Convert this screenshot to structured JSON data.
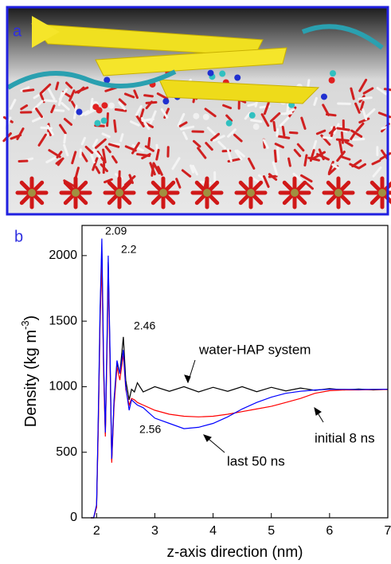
{
  "panel_a": {
    "label": "a"
  },
  "chart_data": {
    "type": "line",
    "panel_label": "b",
    "xlabel": "z-axis direction (nm)",
    "ylabel": {
      "text": "Density (kg m",
      "superscript": "-3",
      "end": ")"
    },
    "xlim": [
      1.75,
      7
    ],
    "ylim": [
      0,
      2230
    ],
    "xticks": [
      2,
      3,
      4,
      5,
      6,
      7
    ],
    "yticks": [
      0,
      500,
      1000,
      1500,
      2000
    ],
    "x": [
      1.9,
      1.95,
      2.0,
      2.03,
      2.06,
      2.09,
      2.12,
      2.15,
      2.18,
      2.2,
      2.23,
      2.26,
      2.3,
      2.35,
      2.4,
      2.46,
      2.5,
      2.56,
      2.6,
      2.65,
      2.7,
      2.8,
      3.0,
      3.25,
      3.5,
      3.75,
      4.0,
      4.25,
      4.5,
      4.75,
      5.0,
      5.25,
      5.5,
      5.75,
      6.0,
      6.25,
      6.5,
      6.75,
      7.0
    ],
    "series": [
      {
        "name": "water-HAP system",
        "color": "#000000",
        "values": [
          0,
          0,
          90,
          750,
          1550,
          2050,
          1150,
          640,
          1350,
          1950,
          1250,
          440,
          880,
          1180,
          1100,
          1380,
          1050,
          900,
          980,
          960,
          1030,
          960,
          1000,
          965,
          1000,
          960,
          995,
          965,
          1000,
          962,
          995,
          968,
          990,
          972,
          985,
          975,
          982,
          975,
          980
        ]
      },
      {
        "name": "initial 8 ns",
        "color": "#ff0000",
        "values": [
          0,
          0,
          80,
          700,
          1500,
          1950,
          1100,
          620,
          1300,
          1900,
          1200,
          420,
          850,
          1150,
          1050,
          1250,
          980,
          860,
          910,
          900,
          880,
          860,
          820,
          790,
          775,
          770,
          775,
          790,
          810,
          830,
          850,
          880,
          910,
          950,
          970,
          975,
          975,
          978,
          978
        ]
      },
      {
        "name": "last 50 ns",
        "color": "#0000ff",
        "values": [
          0,
          0,
          100,
          800,
          1600,
          2130,
          1200,
          650,
          1400,
          2000,
          1300,
          450,
          900,
          1200,
          1100,
          1280,
          1000,
          820,
          900,
          880,
          860,
          840,
          760,
          720,
          680,
          690,
          720,
          770,
          830,
          880,
          920,
          950,
          965,
          975,
          980,
          980,
          978,
          980,
          980
        ]
      }
    ],
    "annotations": [
      "2.09",
      "2.2",
      "2.46",
      "2.56"
    ]
  }
}
